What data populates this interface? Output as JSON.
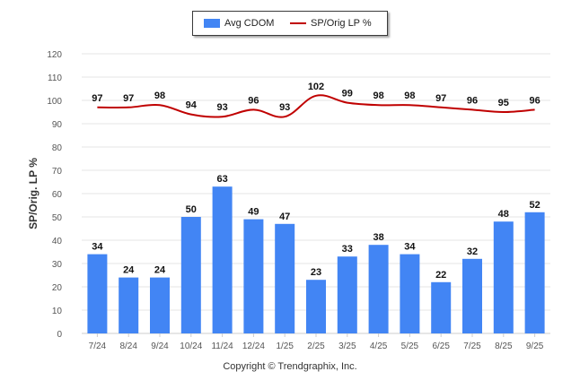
{
  "legend": {
    "bar_label": "Avg CDOM",
    "line_label": "SP/Orig LP %"
  },
  "copyright": "Copyright © Trendgraphix, Inc.",
  "colors": {
    "bar": "#4285f4",
    "line": "#c00000",
    "grid": "#e6e6e6",
    "axis_text": "#555555",
    "label_text": "#111111"
  },
  "chart_data": {
    "type": "bar",
    "title": "",
    "xlabel": "",
    "ylabel": "SP/Orig. LP %",
    "ylim": [
      0,
      120
    ],
    "yticks": [
      0,
      10,
      20,
      30,
      40,
      50,
      60,
      70,
      80,
      90,
      100,
      110,
      120
    ],
    "categories": [
      "7/24",
      "8/24",
      "9/24",
      "10/24",
      "11/24",
      "12/24",
      "1/25",
      "2/25",
      "3/25",
      "4/25",
      "5/25",
      "6/25",
      "7/25",
      "8/25",
      "9/25"
    ],
    "series": [
      {
        "name": "Avg CDOM",
        "type": "bar",
        "values": [
          34,
          24,
          24,
          50,
          63,
          49,
          47,
          23,
          33,
          38,
          34,
          22,
          32,
          48,
          52
        ]
      },
      {
        "name": "SP/Orig LP %",
        "type": "line",
        "values": [
          97,
          97,
          98,
          94,
          93,
          96,
          93,
          102,
          99,
          98,
          98,
          97,
          96,
          95,
          96
        ]
      }
    ]
  }
}
